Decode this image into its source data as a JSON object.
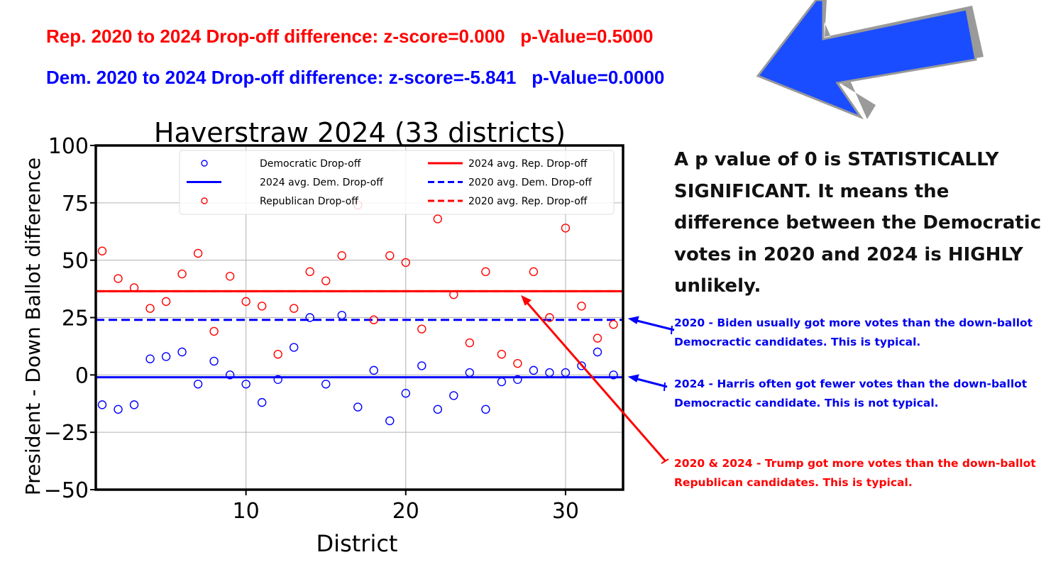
{
  "header": {
    "rep_stats": "Rep. 2020 to 2024 Drop-off difference: z-score=0.000   p-Value=0.5000",
    "dem_stats": "Dem. 2020 to 2024 Drop-off difference: z-score=-5.841   p-Value=0.0000"
  },
  "big_note": "A p value of 0 is STATISTICALLY SIGNIFICANT. It means the difference between the Democratic votes in 2020 and 2024 is HIGHLY unlikely.",
  "annotations": [
    {
      "text": "2020 - Biden usually got more votes than the down-ballot Democractic candidates. This is typical.",
      "color": "#0000ee"
    },
    {
      "text": "2024 - Harris often got fewer votes than the down-ballot Democractic candidate. This is not typical.",
      "color": "#0000ee"
    },
    {
      "text": "2020 & 2024 - Trump got more votes than the down-ballot Republican candidates. This  is typical.",
      "color": "#ff0000"
    }
  ],
  "colors": {
    "dem": "#0000ff",
    "rep": "#ff0000",
    "arrow": "#1a4dff"
  },
  "chart_data": {
    "type": "scatter",
    "title": "Haverstraw 2024 (33 districts)",
    "xlabel": "District",
    "ylabel": "President - Down Ballot difference",
    "xlim": [
      0.6,
      33.6
    ],
    "ylim": [
      -50,
      100
    ],
    "xticks": [
      10,
      20,
      30
    ],
    "yticks": [
      -50,
      -25,
      0,
      25,
      50,
      75,
      100
    ],
    "ytick_labels": [
      "−50",
      "−25",
      "0",
      "25",
      "50",
      "75",
      "100"
    ],
    "grid": true,
    "legend_position": "top-right",
    "legend": [
      "Democratic Drop-off",
      "2024 avg. Rep. Drop-off",
      "2024 avg. Dem. Drop-off",
      "2020 avg. Dem. Drop-off",
      "Republican Drop-off",
      "2020 avg. Rep. Drop-off"
    ],
    "x": [
      1,
      2,
      3,
      4,
      5,
      6,
      7,
      8,
      9,
      10,
      11,
      12,
      13,
      14,
      15,
      16,
      17,
      18,
      19,
      20,
      21,
      22,
      23,
      24,
      25,
      26,
      27,
      28,
      29,
      30,
      31,
      32,
      33
    ],
    "series": [
      {
        "name": "Democratic Drop-off",
        "color": "#0000ff",
        "values": [
          -13,
          -15,
          -13,
          7,
          8,
          10,
          -4,
          6,
          0,
          -4,
          -12,
          -2,
          12,
          25,
          -4,
          26,
          -14,
          2,
          -20,
          -8,
          4,
          -15,
          -9,
          1,
          -15,
          -3,
          -2,
          2,
          1,
          1,
          4,
          10,
          0
        ]
      },
      {
        "name": "Republican Drop-off",
        "color": "#ff0000",
        "values": [
          54,
          42,
          38,
          29,
          32,
          44,
          53,
          19,
          43,
          32,
          30,
          9,
          29,
          45,
          41,
          52,
          74,
          24,
          52,
          49,
          20,
          68,
          35,
          14,
          45,
          9,
          5,
          45,
          25,
          64,
          30,
          16,
          22
        ]
      }
    ],
    "hlines": [
      {
        "name": "2024 avg. Rep. Drop-off",
        "value": 36.5,
        "color": "#ff0000",
        "dashed": false
      },
      {
        "name": "2020 avg. Rep. Drop-off",
        "value": 36.5,
        "color": "#ff0000",
        "dashed": true
      },
      {
        "name": "2020 avg. Dem. Drop-off",
        "value": 24,
        "color": "#0000ff",
        "dashed": true
      },
      {
        "name": "2024 avg. Dem. Drop-off",
        "value": -1,
        "color": "#0000ff",
        "dashed": false
      }
    ]
  }
}
